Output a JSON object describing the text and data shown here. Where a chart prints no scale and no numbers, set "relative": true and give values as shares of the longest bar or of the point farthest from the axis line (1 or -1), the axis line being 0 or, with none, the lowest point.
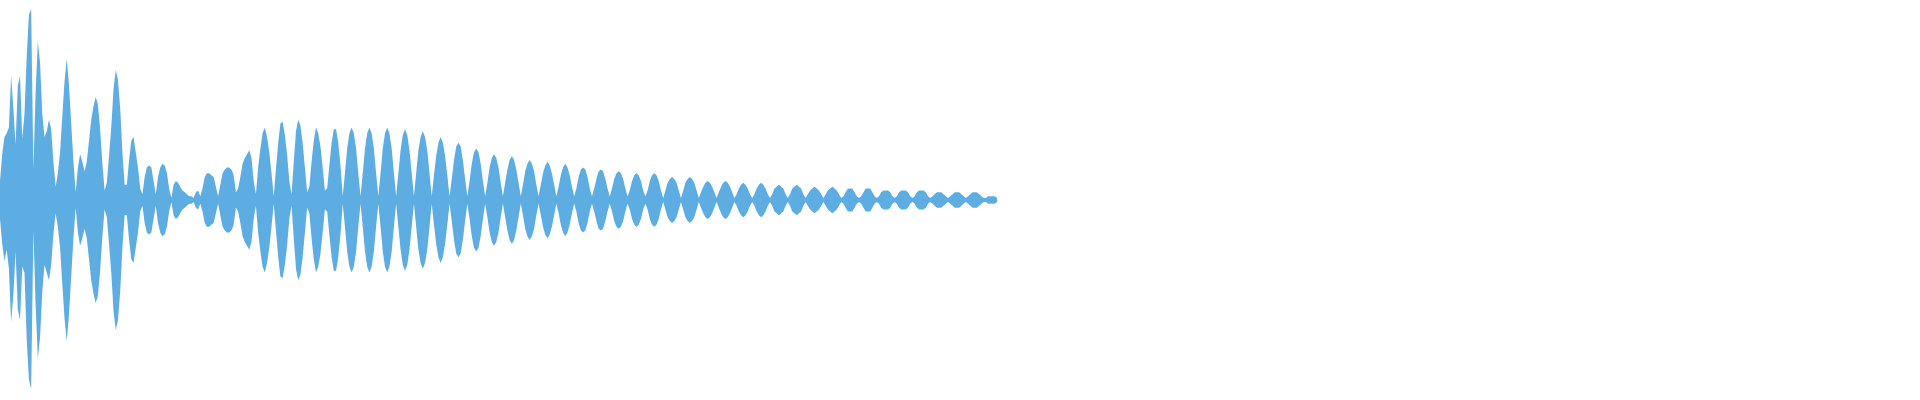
{
  "chart_data": {
    "type": "area",
    "relative": true,
    "tick_labels": false,
    "categories": [
      null,
      null,
      null,
      null,
      null,
      null,
      null,
      null,
      null,
      null,
      null,
      null,
      null,
      null,
      null,
      null,
      null,
      null,
      null,
      null,
      null,
      null,
      null,
      null,
      null,
      null,
      null,
      null,
      null,
      null,
      null,
      null,
      null,
      null,
      null,
      null,
      null,
      null,
      null,
      null,
      null,
      null,
      null,
      null,
      null,
      null,
      null,
      null,
      null,
      null,
      null,
      null,
      null,
      null,
      null,
      null,
      null,
      null,
      null,
      null,
      null,
      null,
      null,
      null,
      null,
      null,
      null,
      null,
      null,
      null,
      null,
      null,
      null,
      null,
      null,
      null,
      null,
      null,
      null,
      null,
      null,
      null,
      null,
      null,
      null,
      null,
      null,
      null,
      null,
      null,
      null,
      null,
      null,
      null,
      null,
      null,
      null,
      null,
      null,
      null,
      null,
      null,
      null,
      null,
      null,
      null,
      null,
      null,
      null,
      null,
      null,
      null,
      null,
      null,
      null,
      null,
      null,
      null,
      null,
      null,
      null,
      null,
      null,
      null,
      null,
      null,
      null,
      null,
      null,
      null,
      null,
      null,
      null,
      null,
      null,
      null,
      null,
      null,
      null,
      null,
      null,
      null,
      null,
      null,
      null,
      null,
      null,
      null,
      null,
      null,
      null,
      null,
      null,
      null,
      null,
      null,
      null,
      null,
      null,
      null,
      null,
      null,
      null,
      null,
      null,
      null,
      null,
      null,
      null,
      null,
      null,
      null,
      null,
      null,
      null,
      null,
      null,
      null,
      null,
      null,
      null,
      null,
      null,
      null,
      null,
      null,
      null,
      null,
      null,
      null,
      null,
      null,
      null,
      null,
      null,
      null,
      null,
      null,
      null,
      null,
      null,
      null,
      null,
      null,
      null,
      null,
      null,
      null,
      null,
      null,
      null,
      null,
      null,
      null,
      null,
      null,
      null,
      null,
      null,
      null,
      null,
      null,
      null,
      null,
      null,
      null,
      null,
      null,
      null,
      null,
      null,
      null,
      null,
      null,
      null,
      null,
      null,
      null,
      null,
      null,
      null,
      null,
      null,
      null,
      null,
      null,
      null,
      null,
      null,
      null,
      null,
      null,
      null,
      null,
      null,
      null,
      null,
      null,
      null,
      null,
      null,
      null,
      null,
      null,
      null,
      null,
      null,
      null,
      null,
      null,
      null,
      null,
      null,
      null,
      null,
      null,
      null,
      null,
      null,
      null,
      null,
      null,
      null,
      null,
      null,
      null,
      null,
      null,
      null,
      null,
      null,
      null,
      null,
      null,
      null,
      null,
      null,
      null,
      null,
      null,
      null,
      null,
      null,
      null,
      null,
      null,
      null,
      null,
      null,
      null,
      null,
      null,
      null,
      null,
      null,
      null,
      null,
      null,
      null,
      null,
      null,
      null,
      null,
      null,
      null,
      null,
      null,
      null,
      null,
      null,
      null,
      null,
      null,
      null,
      null,
      null,
      null,
      null,
      null,
      null,
      null,
      null,
      null,
      null,
      null,
      null,
      null,
      null,
      null,
      null,
      null,
      null,
      null,
      null,
      null,
      null,
      null,
      null,
      null,
      null,
      null,
      null,
      null,
      null,
      null,
      null,
      null,
      null,
      null,
      null,
      null,
      null,
      null,
      null,
      null,
      null,
      null,
      null,
      null,
      null,
      null,
      null,
      null,
      null,
      null,
      null,
      null,
      null,
      null,
      null,
      null,
      null,
      null,
      null,
      null,
      null,
      null,
      null,
      null,
      null,
      null,
      null,
      null,
      null,
      null,
      null,
      null,
      null,
      null,
      null,
      null,
      null,
      null,
      null,
      null,
      null,
      null,
      null,
      null,
      null,
      null,
      null,
      null,
      null,
      null,
      null,
      null,
      null,
      null,
      null,
      null,
      null,
      null,
      null,
      null,
      null,
      null,
      null,
      null,
      null,
      null,
      null,
      null,
      null,
      null,
      null,
      null,
      null,
      null
    ],
    "series": [
      {
        "color": "#5dade2",
        "values": [
          0.1,
          0.24,
          0.33,
          0.35,
          0.38,
          0.65,
          0.48,
          0.29,
          0.6,
          0.65,
          0.32,
          0.45,
          0.75,
          0.97,
          1.0,
          0.16,
          0.56,
          0.83,
          0.72,
          0.45,
          0.33,
          0.36,
          0.42,
          0.37,
          0.2,
          0.07,
          0.14,
          0.25,
          0.44,
          0.62,
          0.74,
          0.6,
          0.4,
          0.2,
          0.04,
          0.17,
          0.24,
          0.2,
          0.15,
          0.2,
          0.31,
          0.42,
          0.49,
          0.54,
          0.5,
          0.37,
          0.19,
          0.05,
          0.09,
          0.23,
          0.38,
          0.58,
          0.68,
          0.63,
          0.48,
          0.25,
          0.08,
          0.08,
          0.21,
          0.31,
          0.33,
          0.25,
          0.17,
          0.06,
          0.03,
          0.12,
          0.17,
          0.18,
          0.17,
          0.1,
          0.03,
          0.12,
          0.17,
          0.19,
          0.18,
          0.14,
          0.06,
          0.01,
          0.08,
          0.1,
          0.09,
          0.07,
          0.05,
          0.04,
          0.03,
          0.02,
          0.02,
          0.01,
          0.04,
          0.05,
          0.02,
          0.06,
          0.12,
          0.14,
          0.14,
          0.13,
          0.12,
          0.07,
          0.02,
          0.08,
          0.14,
          0.16,
          0.17,
          0.17,
          0.16,
          0.13,
          0.04,
          0.06,
          0.12,
          0.19,
          0.22,
          0.24,
          0.26,
          0.22,
          0.1,
          0.03,
          0.17,
          0.27,
          0.35,
          0.38,
          0.33,
          0.25,
          0.14,
          0.02,
          0.16,
          0.3,
          0.4,
          0.41,
          0.34,
          0.24,
          0.1,
          0.03,
          0.2,
          0.36,
          0.42,
          0.39,
          0.3,
          0.17,
          0.04,
          0.07,
          0.2,
          0.31,
          0.38,
          0.35,
          0.28,
          0.17,
          0.05,
          0.06,
          0.18,
          0.3,
          0.37,
          0.37,
          0.3,
          0.18,
          0.02,
          0.14,
          0.27,
          0.35,
          0.38,
          0.35,
          0.27,
          0.14,
          0.02,
          0.14,
          0.27,
          0.35,
          0.38,
          0.35,
          0.27,
          0.14,
          0.02,
          0.14,
          0.27,
          0.35,
          0.38,
          0.35,
          0.27,
          0.14,
          0.02,
          0.14,
          0.26,
          0.34,
          0.37,
          0.34,
          0.26,
          0.14,
          0.02,
          0.14,
          0.26,
          0.33,
          0.36,
          0.33,
          0.26,
          0.14,
          0.02,
          0.13,
          0.23,
          0.3,
          0.33,
          0.3,
          0.23,
          0.13,
          0.02,
          0.11,
          0.21,
          0.28,
          0.3,
          0.28,
          0.21,
          0.11,
          0.02,
          0.1,
          0.19,
          0.25,
          0.27,
          0.25,
          0.19,
          0.1,
          0.02,
          0.09,
          0.17,
          0.22,
          0.24,
          0.22,
          0.17,
          0.09,
          0.02,
          0.09,
          0.16,
          0.21,
          0.23,
          0.21,
          0.16,
          0.09,
          0.02,
          0.08,
          0.15,
          0.19,
          0.21,
          0.19,
          0.15,
          0.08,
          0.02,
          0.08,
          0.14,
          0.18,
          0.2,
          0.18,
          0.14,
          0.08,
          0.02,
          0.07,
          0.13,
          0.17,
          0.19,
          0.17,
          0.13,
          0.07,
          0.02,
          0.06,
          0.12,
          0.16,
          0.17,
          0.16,
          0.12,
          0.06,
          0.02,
          0.06,
          0.11,
          0.15,
          0.16,
          0.15,
          0.11,
          0.06,
          0.02,
          0.06,
          0.11,
          0.14,
          0.15,
          0.14,
          0.11,
          0.06,
          0.02,
          0.05,
          0.1,
          0.13,
          0.14,
          0.13,
          0.1,
          0.05,
          0.02,
          0.05,
          0.1,
          0.13,
          0.14,
          0.13,
          0.1,
          0.05,
          0.01,
          0.05,
          0.09,
          0.11,
          0.12,
          0.11,
          0.09,
          0.05,
          0.01,
          0.05,
          0.09,
          0.11,
          0.12,
          0.11,
          0.09,
          0.05,
          0.01,
          0.04,
          0.07,
          0.09,
          0.1,
          0.09,
          0.07,
          0.04,
          0.01,
          0.04,
          0.07,
          0.09,
          0.1,
          0.09,
          0.07,
          0.04,
          0.01,
          0.03,
          0.06,
          0.08,
          0.09,
          0.08,
          0.06,
          0.03,
          0.01,
          0.03,
          0.06,
          0.08,
          0.09,
          0.08,
          0.06,
          0.03,
          0.01,
          0.03,
          0.06,
          0.07,
          0.08,
          0.07,
          0.06,
          0.03,
          0.01,
          0.03,
          0.06,
          0.07,
          0.08,
          0.07,
          0.06,
          0.03,
          0.01,
          0.03,
          0.05,
          0.06,
          0.07,
          0.06,
          0.05,
          0.03,
          0.01,
          0.03,
          0.05,
          0.06,
          0.07,
          0.06,
          0.05,
          0.03,
          0.01,
          0.02,
          0.04,
          0.06,
          0.06,
          0.06,
          0.04,
          0.02,
          0.01,
          0.02,
          0.04,
          0.06,
          0.06,
          0.06,
          0.04,
          0.02,
          0.01,
          0.02,
          0.04,
          0.05,
          0.05,
          0.05,
          0.04,
          0.02,
          0.01,
          0.02,
          0.04,
          0.05,
          0.05,
          0.05,
          0.04,
          0.02,
          0.01,
          0.02,
          0.04,
          0.05,
          0.05,
          0.05,
          0.04,
          0.02,
          0.01,
          0.02,
          0.03,
          0.04,
          0.04,
          0.04,
          0.03,
          0.02,
          0.01,
          0.02,
          0.03,
          0.04,
          0.04,
          0.04,
          0.03,
          0.02,
          0.01,
          0.02,
          0.03,
          0.04,
          0.04,
          0.04,
          0.03,
          0.02,
          0.01,
          0.01,
          0.02,
          0.02,
          0.02,
          0.02,
          0.01
        ]
      },
      {
        "color": "#5dade2",
        "values": [
          -0.1,
          -0.23,
          -0.32,
          -0.26,
          -0.36,
          -0.64,
          -0.5,
          -0.27,
          -0.57,
          -0.63,
          -0.35,
          -0.38,
          -0.73,
          -0.94,
          -0.99,
          -0.16,
          -0.55,
          -0.83,
          -0.72,
          -0.48,
          -0.34,
          -0.38,
          -0.42,
          -0.34,
          -0.18,
          -0.07,
          -0.14,
          -0.25,
          -0.44,
          -0.62,
          -0.74,
          -0.6,
          -0.4,
          -0.2,
          -0.04,
          -0.17,
          -0.24,
          -0.2,
          -0.15,
          -0.2,
          -0.31,
          -0.42,
          -0.49,
          -0.54,
          -0.5,
          -0.37,
          -0.19,
          -0.05,
          -0.09,
          -0.23,
          -0.38,
          -0.58,
          -0.68,
          -0.63,
          -0.48,
          -0.25,
          -0.08,
          -0.08,
          -0.21,
          -0.31,
          -0.33,
          -0.25,
          -0.17,
          -0.06,
          -0.03,
          -0.12,
          -0.17,
          -0.18,
          -0.17,
          -0.1,
          -0.03,
          -0.12,
          -0.17,
          -0.19,
          -0.18,
          -0.14,
          -0.06,
          -0.01,
          -0.08,
          -0.1,
          -0.09,
          -0.07,
          -0.05,
          -0.04,
          -0.03,
          -0.02,
          -0.02,
          -0.01,
          -0.04,
          -0.05,
          -0.02,
          -0.06,
          -0.12,
          -0.14,
          -0.14,
          -0.13,
          -0.12,
          -0.07,
          -0.02,
          -0.08,
          -0.14,
          -0.16,
          -0.17,
          -0.17,
          -0.16,
          -0.13,
          -0.04,
          -0.06,
          -0.12,
          -0.19,
          -0.22,
          -0.24,
          -0.26,
          -0.22,
          -0.1,
          -0.03,
          -0.17,
          -0.27,
          -0.35,
          -0.38,
          -0.33,
          -0.25,
          -0.14,
          -0.02,
          -0.16,
          -0.3,
          -0.4,
          -0.41,
          -0.34,
          -0.24,
          -0.1,
          -0.03,
          -0.2,
          -0.36,
          -0.42,
          -0.39,
          -0.3,
          -0.17,
          -0.04,
          -0.07,
          -0.2,
          -0.31,
          -0.38,
          -0.35,
          -0.28,
          -0.17,
          -0.05,
          -0.06,
          -0.18,
          -0.3,
          -0.37,
          -0.37,
          -0.3,
          -0.18,
          -0.02,
          -0.14,
          -0.27,
          -0.35,
          -0.38,
          -0.35,
          -0.27,
          -0.14,
          -0.02,
          -0.14,
          -0.27,
          -0.35,
          -0.38,
          -0.35,
          -0.27,
          -0.14,
          -0.02,
          -0.14,
          -0.27,
          -0.35,
          -0.38,
          -0.35,
          -0.27,
          -0.14,
          -0.02,
          -0.14,
          -0.26,
          -0.34,
          -0.37,
          -0.34,
          -0.26,
          -0.14,
          -0.02,
          -0.14,
          -0.26,
          -0.33,
          -0.36,
          -0.33,
          -0.26,
          -0.14,
          -0.02,
          -0.13,
          -0.23,
          -0.3,
          -0.33,
          -0.3,
          -0.23,
          -0.13,
          -0.02,
          -0.11,
          -0.21,
          -0.28,
          -0.3,
          -0.28,
          -0.21,
          -0.11,
          -0.02,
          -0.1,
          -0.19,
          -0.25,
          -0.27,
          -0.25,
          -0.19,
          -0.1,
          -0.02,
          -0.09,
          -0.17,
          -0.22,
          -0.24,
          -0.22,
          -0.17,
          -0.09,
          -0.02,
          -0.09,
          -0.16,
          -0.21,
          -0.23,
          -0.21,
          -0.16,
          -0.09,
          -0.02,
          -0.08,
          -0.15,
          -0.19,
          -0.21,
          -0.19,
          -0.15,
          -0.08,
          -0.02,
          -0.08,
          -0.14,
          -0.18,
          -0.2,
          -0.18,
          -0.14,
          -0.08,
          -0.02,
          -0.07,
          -0.13,
          -0.17,
          -0.19,
          -0.17,
          -0.13,
          -0.07,
          -0.02,
          -0.06,
          -0.12,
          -0.16,
          -0.17,
          -0.16,
          -0.12,
          -0.06,
          -0.02,
          -0.06,
          -0.11,
          -0.15,
          -0.16,
          -0.15,
          -0.11,
          -0.06,
          -0.02,
          -0.06,
          -0.11,
          -0.14,
          -0.15,
          -0.14,
          -0.11,
          -0.06,
          -0.02,
          -0.05,
          -0.1,
          -0.13,
          -0.14,
          -0.13,
          -0.1,
          -0.05,
          -0.02,
          -0.05,
          -0.1,
          -0.13,
          -0.14,
          -0.13,
          -0.1,
          -0.05,
          -0.01,
          -0.05,
          -0.09,
          -0.11,
          -0.12,
          -0.11,
          -0.09,
          -0.05,
          -0.01,
          -0.05,
          -0.09,
          -0.11,
          -0.12,
          -0.11,
          -0.09,
          -0.05,
          -0.01,
          -0.04,
          -0.07,
          -0.09,
          -0.1,
          -0.09,
          -0.07,
          -0.04,
          -0.01,
          -0.04,
          -0.07,
          -0.09,
          -0.1,
          -0.09,
          -0.07,
          -0.04,
          -0.01,
          -0.03,
          -0.06,
          -0.08,
          -0.09,
          -0.08,
          -0.06,
          -0.03,
          -0.01,
          -0.03,
          -0.06,
          -0.08,
          -0.09,
          -0.08,
          -0.06,
          -0.03,
          -0.01,
          -0.03,
          -0.06,
          -0.07,
          -0.08,
          -0.07,
          -0.06,
          -0.03,
          -0.01,
          -0.03,
          -0.06,
          -0.07,
          -0.08,
          -0.07,
          -0.06,
          -0.03,
          -0.01,
          -0.03,
          -0.05,
          -0.06,
          -0.07,
          -0.06,
          -0.05,
          -0.03,
          -0.01,
          -0.03,
          -0.05,
          -0.06,
          -0.07,
          -0.06,
          -0.05,
          -0.03,
          -0.01,
          -0.02,
          -0.04,
          -0.06,
          -0.06,
          -0.06,
          -0.04,
          -0.02,
          -0.01,
          -0.02,
          -0.04,
          -0.06,
          -0.06,
          -0.06,
          -0.04,
          -0.02,
          -0.01,
          -0.02,
          -0.04,
          -0.05,
          -0.05,
          -0.05,
          -0.04,
          -0.02,
          -0.01,
          -0.02,
          -0.04,
          -0.05,
          -0.05,
          -0.05,
          -0.04,
          -0.02,
          -0.01,
          -0.02,
          -0.04,
          -0.05,
          -0.05,
          -0.05,
          -0.04,
          -0.02,
          -0.01,
          -0.02,
          -0.03,
          -0.04,
          -0.04,
          -0.04,
          -0.03,
          -0.02,
          -0.01,
          -0.02,
          -0.03,
          -0.04,
          -0.04,
          -0.04,
          -0.03,
          -0.02,
          -0.01,
          -0.02,
          -0.03,
          -0.04,
          -0.04,
          -0.04,
          -0.03,
          -0.02,
          -0.01,
          -0.01,
          -0.02,
          -0.02,
          -0.02,
          -0.02,
          -0.01
        ]
      }
    ]
  }
}
